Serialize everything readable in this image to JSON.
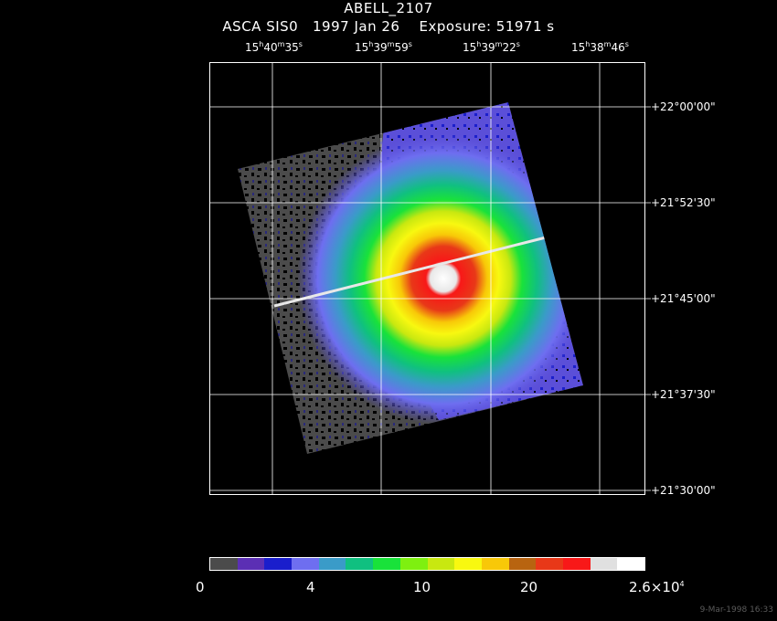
{
  "header": {
    "object": "ABELL_2107",
    "instrument": "ASCA SIS0",
    "date": "1997 Jan 26",
    "exposure": "Exposure: 51971 s"
  },
  "ra_labels": [
    {
      "h": "15",
      "m": "40",
      "s": "35"
    },
    {
      "h": "15",
      "m": "39",
      "s": "59"
    },
    {
      "h": "15",
      "m": "39",
      "s": "22"
    },
    {
      "h": "15",
      "m": "38",
      "s": "46"
    }
  ],
  "dec_labels": [
    "+22°00'00\"",
    "+21°52'30\"",
    "+21°45'00\"",
    "+21°37'30\"",
    "+21°30'00\""
  ],
  "colorbar": {
    "ticks": [
      "0",
      "4",
      "10",
      "20"
    ],
    "max_mantissa": "2.6×10",
    "max_exponent": "4",
    "colors": [
      "#4b4b4b",
      "#5b2fb4",
      "#1a1ecc",
      "#6e6ef0",
      "#3a9bc8",
      "#10c080",
      "#19e23a",
      "#7ef010",
      "#c8e810",
      "#f8f810",
      "#f8c808",
      "#b86410",
      "#e83818",
      "#f81818",
      "#e0e0e0",
      "#ffffff"
    ]
  },
  "footer": "9-Mar-1998 16:33"
}
